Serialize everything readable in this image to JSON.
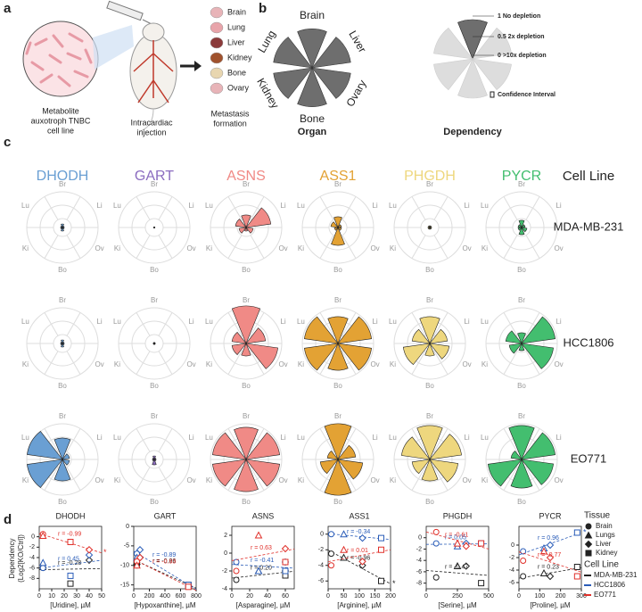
{
  "panel_a": {
    "label": "a",
    "cell_line": [
      "Metabolite",
      "auxotroph TNBC",
      "cell line"
    ],
    "injection": [
      "Intracardiac",
      "injection"
    ],
    "organs": [
      "Brain",
      "Lung",
      "Liver",
      "Kidney",
      "Bone",
      "Ovary"
    ],
    "outcome": [
      "Metastasis",
      "formation"
    ]
  },
  "panel_b": {
    "label": "b",
    "organs": [
      "Brain",
      "Liver",
      "Ovary",
      "Bone",
      "Kidney",
      "Lung"
    ],
    "values": [
      0.95,
      0.95,
      0.95,
      0.95,
      0.95,
      0.95
    ],
    "organ_title": "Organ",
    "dependency_title": "Dependency",
    "legend": [
      "1 No depletion",
      "0.5 2x depletion",
      "0 >10x depletion"
    ],
    "ci": "Confidence Interval"
  },
  "panel_c": {
    "label": "c",
    "directions": [
      "Br",
      "Li",
      "Ov",
      "Bo",
      "Ki",
      "Lu"
    ],
    "cell_line_title": "Cell Line",
    "genes": [
      {
        "name": "DHODH",
        "color": "#6a9fd3"
      },
      {
        "name": "GART",
        "color": "#8b6cc0"
      },
      {
        "name": "ASNS",
        "color": "#f08a86"
      },
      {
        "name": "ASS1",
        "color": "#e3a234"
      },
      {
        "name": "PHGDH",
        "color": "#eed77e"
      },
      {
        "name": "PYCR",
        "color": "#43be6f"
      }
    ],
    "cell_lines": [
      "MDA-MB-231",
      "HCC1806",
      "EO771"
    ],
    "values": [
      [
        [
          0.1,
          0.05,
          0.05,
          0.1,
          0.05,
          0.05
        ],
        [
          0.02,
          0.02,
          0.02,
          0.02,
          0.02,
          0.02
        ],
        [
          0.35,
          0.7,
          0.2,
          0.1,
          0.2,
          0.3
        ],
        [
          0.3,
          0.1,
          0.1,
          0.5,
          0.1,
          0.2
        ],
        [
          0.05,
          0.05,
          0.05,
          0.05,
          0.05,
          0.05
        ],
        [
          0.2,
          0.1,
          0.15,
          0.2,
          0.1,
          0.1
        ]
      ],
      [
        [
          0.1,
          0.05,
          0.05,
          0.1,
          0.05,
          0.05
        ],
        [
          0.03,
          0.03,
          0.03,
          0.03,
          0.03,
          0.03
        ],
        [
          1.05,
          0.55,
          0.9,
          0.35,
          0.4,
          0.4
        ],
        [
          0.75,
          0.95,
          0.95,
          0.75,
          0.95,
          0.95
        ],
        [
          0.75,
          0.5,
          0.55,
          0.35,
          0.75,
          0.5
        ],
        [
          0.3,
          0.95,
          0.9,
          0.2,
          0.35,
          0.45
        ]
      ],
      [
        [
          0.6,
          0.2,
          0.2,
          0.6,
          1.0,
          1.0
        ],
        [
          0.1,
          0.05,
          0.05,
          0.15,
          0.05,
          0.05
        ],
        [
          0.9,
          0.95,
          0.95,
          0.9,
          0.95,
          0.95
        ],
        [
          1.0,
          0.5,
          0.7,
          1.0,
          0.5,
          0.3
        ],
        [
          0.95,
          0.9,
          0.8,
          0.6,
          0.5,
          0.8
        ],
        [
          0.95,
          0.95,
          0.9,
          0.8,
          0.95,
          0.3
        ]
      ]
    ]
  },
  "panel_d": {
    "label": "d",
    "ylabel": [
      "Dependency",
      "(Log2[KO/Ctrl])"
    ],
    "tissue_title": "Tissue",
    "tissues": [
      "Brain",
      "Lungs",
      "Liver",
      "Kidney"
    ],
    "cell_line_title": "Cell Line",
    "cell_lines": [
      {
        "name": "MDA-MB-231",
        "color": "#222222"
      },
      {
        "name": "HCC1806",
        "color": "#2a5cb8"
      },
      {
        "name": "EO771",
        "color": "#e0302a"
      }
    ],
    "plots": [
      {
        "title": "DHODH",
        "xlabel": "[Uridine], µM",
        "xlim": [
          0,
          50
        ],
        "xticks": [
          0,
          10,
          20,
          30,
          40,
          50
        ],
        "ylim": [
          -10,
          2
        ],
        "yticks": [
          0,
          -2,
          -4,
          -6,
          -8
        ],
        "series": [
          {
            "x": [
              3,
              3,
              40,
              25
            ],
            "y": [
              -6,
              -5.5,
              -4.5,
              -9
            ],
            "r_label": "r = -0.28"
          },
          {
            "x": [
              3,
              3,
              40,
              25
            ],
            "y": [
              -6,
              -5,
              -3.5,
              -7.5
            ],
            "r_label": "r = 0.45"
          },
          {
            "x": [
              3,
              3,
              40,
              25
            ],
            "y": [
              0.5,
              0.2,
              -2.5,
              -1
            ],
            "r_label": "r = -0.99",
            "sig": "*"
          }
        ]
      },
      {
        "title": "GART",
        "xlabel": "[Hypoxanthine], µM",
        "xlim": [
          0,
          800
        ],
        "xticks": [
          0,
          200,
          400,
          600,
          800
        ],
        "ylim": [
          -16,
          0
        ],
        "yticks": [
          0,
          -5,
          -10,
          -15
        ],
        "series": [
          {
            "x": [
              40,
              40,
              80,
              700
            ],
            "y": [
              -10,
              -9,
              -8,
              -15
            ],
            "r_label": "r = -0.86"
          },
          {
            "x": [
              40,
              40,
              80,
              700
            ],
            "y": [
              -7,
              -8,
              -6,
              -15
            ],
            "r_label": "r = -0.89"
          },
          {
            "x": [
              40,
              40,
              80,
              700
            ],
            "y": [
              -9,
              -10,
              -8,
              -15.5
            ],
            "r_label": "r = -0.93"
          }
        ]
      },
      {
        "title": "ASNS",
        "xlabel": "[Asparagine], µM",
        "xlim": [
          0,
          70
        ],
        "xticks": [
          0,
          20,
          40,
          60
        ],
        "ylim": [
          -4,
          3
        ],
        "yticks": [
          2,
          0,
          -2,
          -4
        ],
        "series": [
          {
            "x": [
              5,
              30,
              60,
              60
            ],
            "y": [
              -3,
              -2,
              -2,
              -2.5
            ],
            "r_label": "r = 0.20"
          },
          {
            "x": [
              5,
              30,
              60,
              60
            ],
            "y": [
              -1,
              -2,
              -1,
              -2
            ],
            "r_label": "r = -0.41"
          },
          {
            "x": [
              5,
              30,
              60,
              60
            ],
            "y": [
              -2,
              2,
              0.5,
              -1
            ],
            "r_label": "r = 0.63"
          }
        ]
      },
      {
        "title": "ASS1",
        "xlabel": "[Arginine], µM",
        "xlim": [
          0,
          200
        ],
        "xticks": [
          0,
          50,
          100,
          150,
          200
        ],
        "ylim": [
          -7,
          1
        ],
        "yticks": [
          0,
          -2,
          -4,
          -6
        ],
        "series": [
          {
            "x": [
              10,
              50,
              110,
              170
            ],
            "y": [
              -2.5,
              -3,
              -4,
              -6
            ],
            "r_label": "r = -0.96",
            "sig": "*"
          },
          {
            "x": [
              10,
              50,
              110,
              170
            ],
            "y": [
              0,
              0,
              -0.5,
              -0.5
            ],
            "r_label": "r = -0.34"
          },
          {
            "x": [
              10,
              50,
              110,
              170
            ],
            "y": [
              -4,
              -2,
              -3.5,
              -2
            ],
            "r_label": "r = 0.01"
          }
        ]
      },
      {
        "title": "PHGDH",
        "xlabel": "[Serine], µM",
        "xlim": [
          0,
          500
        ],
        "xticks": [
          0,
          250,
          500
        ],
        "ylim": [
          -9,
          2
        ],
        "yticks": [
          0,
          -2,
          -4,
          -6,
          -8
        ],
        "series": [
          {
            "x": [
              80,
              250,
              320,
              440
            ],
            "y": [
              -7,
              -5,
              -5,
              -8
            ],
            "r_label": "r = -0.47"
          },
          {
            "x": [
              80,
              250,
              320,
              440
            ],
            "y": [
              -1,
              -1.5,
              -1,
              -1
            ],
            "r_label": "r = 0.05"
          },
          {
            "x": [
              80,
              250,
              320,
              440
            ],
            "y": [
              1,
              -1,
              -1.5,
              -1
            ],
            "r_label": "r = -0.61"
          }
        ]
      },
      {
        "title": "PYCR",
        "xlabel": "[Proline], µM",
        "xlim": [
          0,
          300
        ],
        "xticks": [
          0,
          100,
          200,
          300
        ],
        "ylim": [
          -7,
          3
        ],
        "yticks": [
          0,
          -2,
          -4,
          -6
        ],
        "series": [
          {
            "x": [
              20,
              120,
              150,
              280
            ],
            "y": [
              -5,
              -4.5,
              -5,
              -3.5
            ],
            "r_label": "r = 0.23"
          },
          {
            "x": [
              20,
              120,
              150,
              280
            ],
            "y": [
              -1,
              -0.5,
              0,
              2
            ],
            "r_label": "r = 0.96",
            "sig": "*"
          },
          {
            "x": [
              20,
              120,
              150,
              280
            ],
            "y": [
              -2.5,
              -1,
              -2,
              -5
            ],
            "r_label": "r = -0.77"
          }
        ]
      }
    ]
  }
}
